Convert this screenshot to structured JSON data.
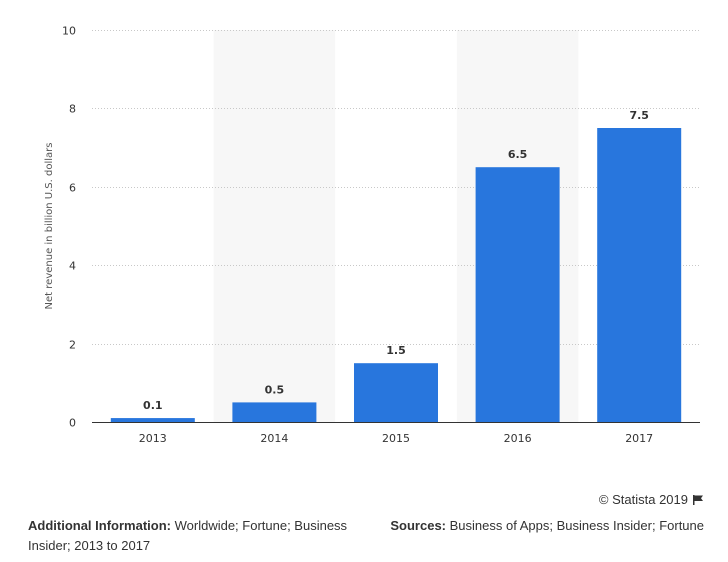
{
  "chart_data": {
    "type": "bar",
    "categories": [
      "2013",
      "2014",
      "2015",
      "2016",
      "2017"
    ],
    "values": [
      0.1,
      0.5,
      1.5,
      6.5,
      7.5
    ],
    "value_labels": [
      "0.1",
      "0.5",
      "1.5",
      "6.5",
      "7.5"
    ],
    "title": "",
    "xlabel": "",
    "ylabel": "Net revenue in billion U.S. dollars",
    "ylim": [
      0,
      10
    ],
    "yticks": [
      0,
      2,
      4,
      6,
      8,
      10
    ],
    "grid": true,
    "legend": "none",
    "bar_color": "#2876dd",
    "band_color": "#f7f7f7",
    "shaded_categories": [
      "2014",
      "2016"
    ]
  },
  "footer": {
    "credit": "© Statista 2019",
    "additional_info_label": "Additional Information:",
    "additional_info_text": "Worldwide; Fortune; Business Insider; 2013 to 2017",
    "sources_label": "Sources:",
    "sources_text": "Business of Apps; Business Insider; Fortune"
  }
}
